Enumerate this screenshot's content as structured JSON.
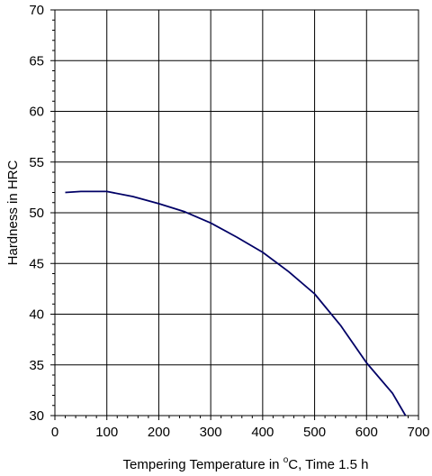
{
  "chart_data": {
    "type": "line",
    "title": "",
    "xlabel": {
      "before": "Tempering Temperature in ",
      "superscript": "o",
      "after": "C, Time 1.5 h"
    },
    "ylabel": "Hardness in HRC",
    "xlim": [
      0,
      700
    ],
    "ylim": [
      30,
      70
    ],
    "x_ticks": [
      "0",
      "100",
      "200",
      "300",
      "400",
      "500",
      "600",
      "700"
    ],
    "y_ticks": [
      "30",
      "35",
      "40",
      "45",
      "50",
      "55",
      "60",
      "65",
      "70"
    ],
    "grid": true,
    "legend": "none",
    "series": [
      {
        "color": "#000066",
        "x": [
          20,
          50,
          100,
          150,
          200,
          250,
          300,
          350,
          400,
          450,
          500,
          550,
          600,
          650,
          675
        ],
        "y": [
          52,
          52.1,
          52.1,
          51.6,
          50.9,
          50.1,
          49,
          47.6,
          46.1,
          44.2,
          42,
          38.9,
          35.2,
          32.2,
          30
        ]
      }
    ]
  }
}
